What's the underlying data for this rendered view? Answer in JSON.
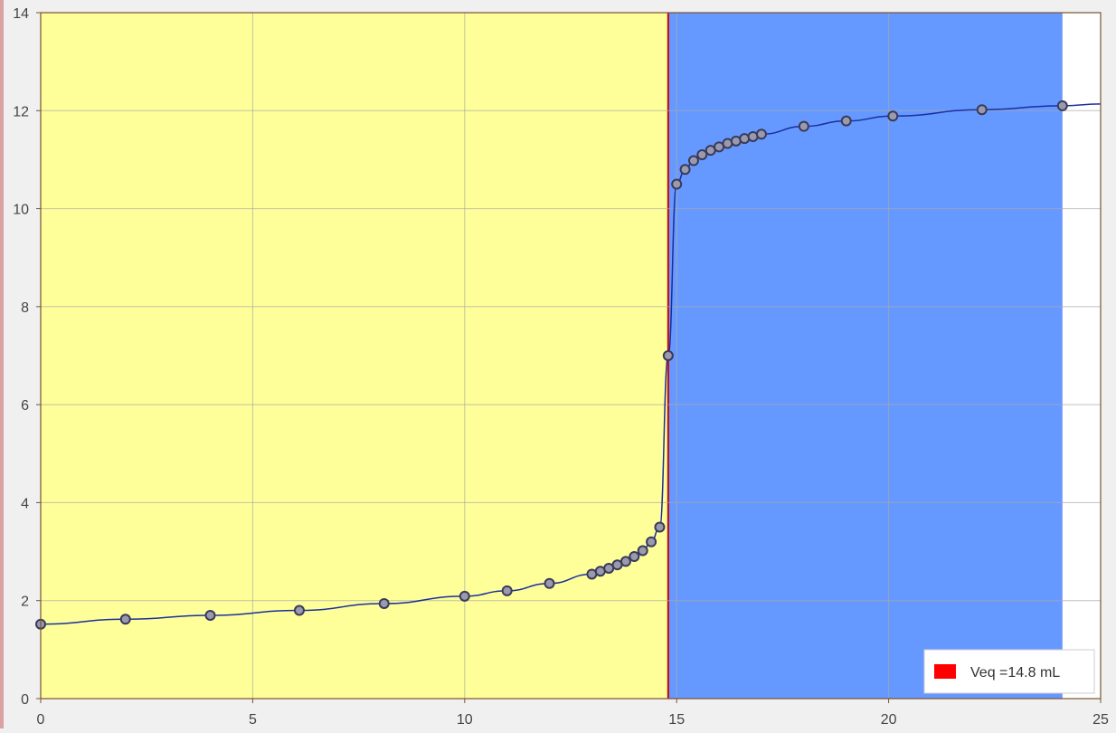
{
  "chart_data": {
    "type": "scatter",
    "title": "",
    "xlabel": "",
    "ylabel": "",
    "xlim": [
      0,
      25
    ],
    "ylim": [
      0,
      14
    ],
    "x_ticks": [
      0,
      5,
      10,
      15,
      20,
      25
    ],
    "y_ticks": [
      0,
      2,
      4,
      6,
      8,
      10,
      12,
      14
    ],
    "grid": true,
    "legend_position": "bottom-right",
    "equivalence_volume": 14.8,
    "legend_label": "Veq =14.8 mL",
    "series": [
      {
        "x": [
          0.0,
          2.0,
          4.0,
          6.1,
          8.1,
          10.0,
          11.0,
          12.0,
          13.0,
          13.2,
          13.4,
          13.6,
          13.8,
          14.0,
          14.2,
          14.4,
          14.6,
          14.8,
          15.0,
          15.2,
          15.4,
          15.6,
          15.8,
          16.0,
          16.2,
          16.4,
          16.6,
          16.8,
          17.0,
          18.0,
          19.0,
          20.1,
          22.2,
          24.1
        ],
        "y": [
          1.52,
          1.62,
          1.7,
          1.8,
          1.94,
          2.09,
          2.2,
          2.35,
          2.54,
          2.6,
          2.66,
          2.73,
          2.8,
          2.9,
          3.02,
          3.2,
          3.5,
          7.0,
          10.5,
          10.8,
          10.98,
          11.1,
          11.19,
          11.26,
          11.33,
          11.38,
          11.43,
          11.47,
          11.52,
          11.68,
          11.79,
          11.89,
          12.02,
          12.1
        ]
      }
    ],
    "colors": {
      "acid_region": "#ffff99",
      "base_region": "#6699ff",
      "equivalence_line": "#cc0000",
      "curve": "#1a2f9e",
      "marker_fill": "#9a9aae",
      "marker_stroke": "#3a3a5a",
      "legend_swatch": "#ff0000",
      "axis": "#7a5230",
      "grid": "#a8a8a8"
    }
  }
}
